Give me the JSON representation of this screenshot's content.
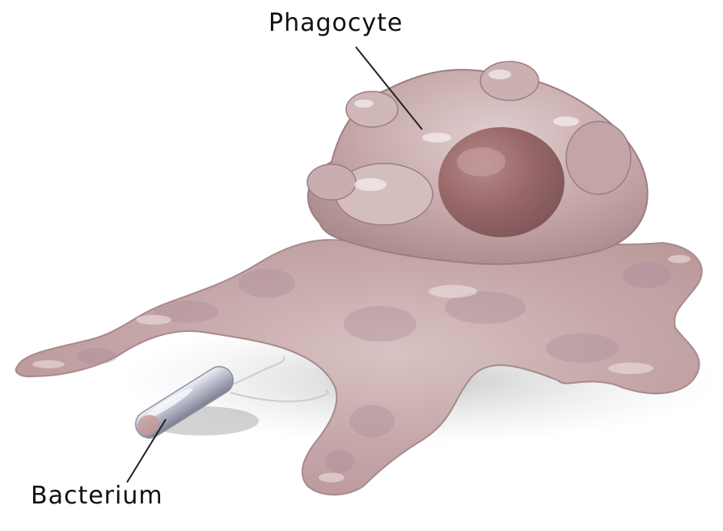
{
  "labels": {
    "phagocyte": "Phagocyte",
    "bacterium": "Bacterium"
  }
}
